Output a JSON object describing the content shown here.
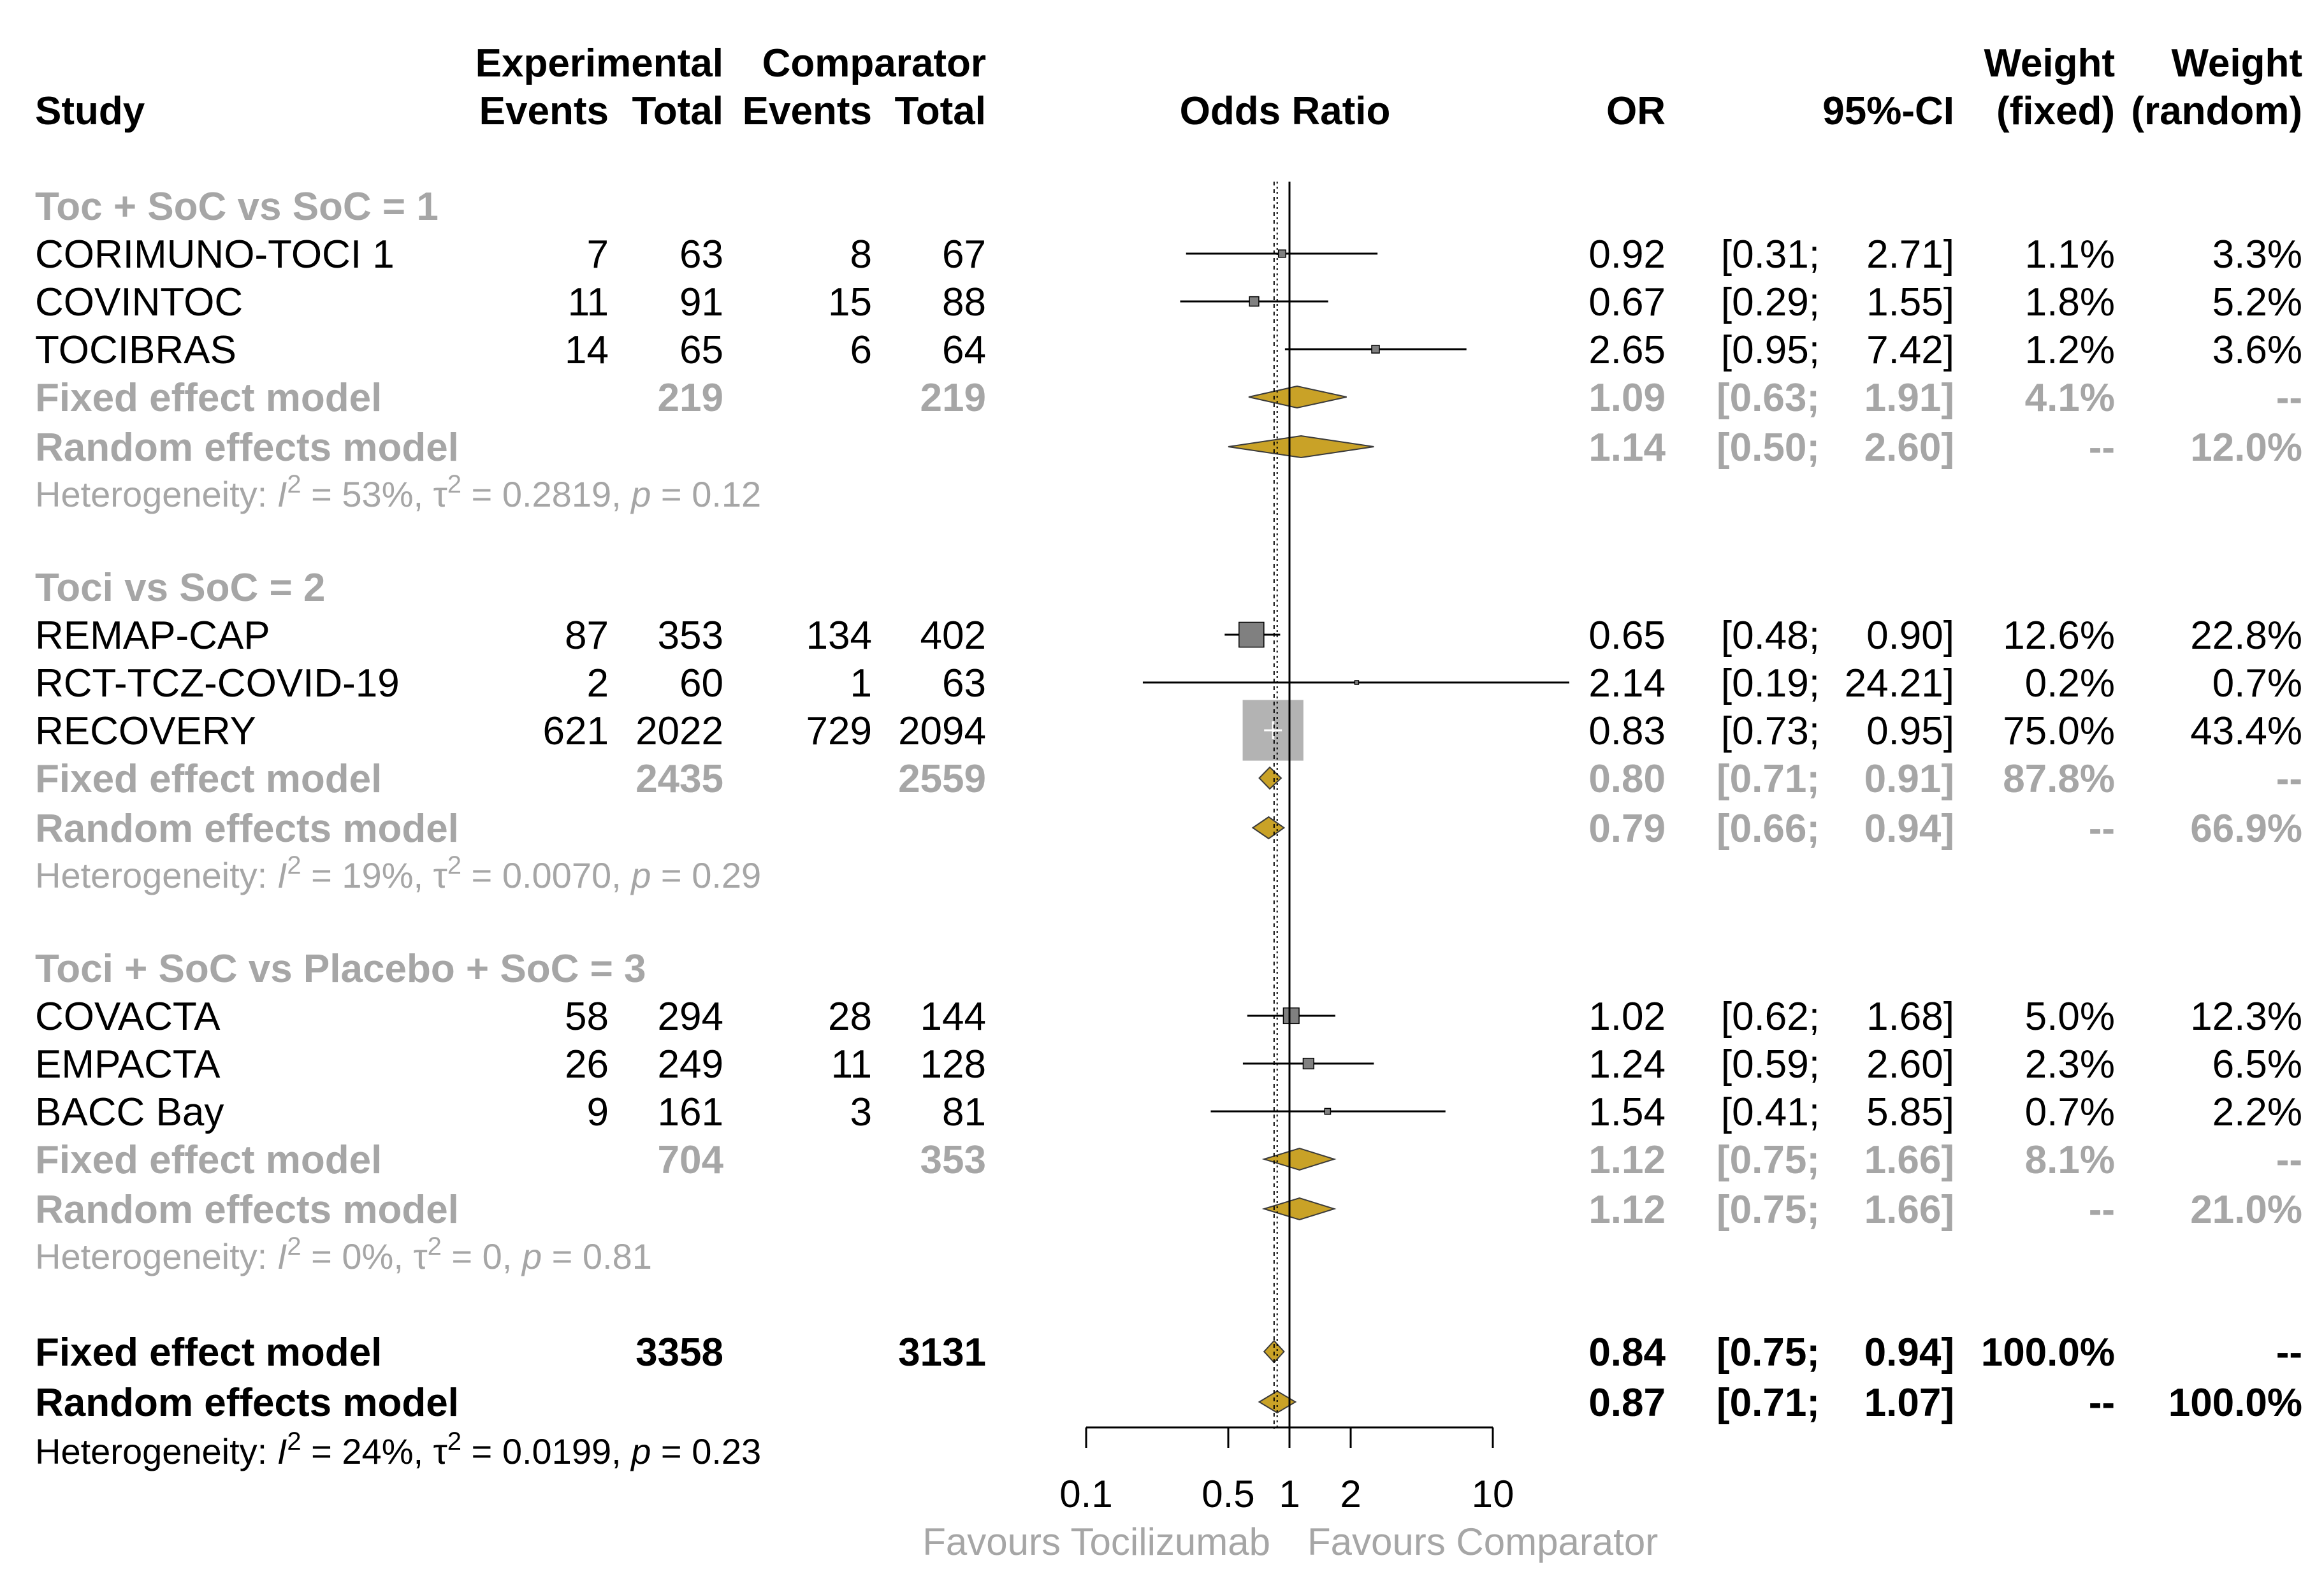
{
  "chart_data": {
    "type": "forest",
    "header": {
      "study": "Study",
      "experimental": "Experimental",
      "comparator": "Comparator",
      "events": "Events",
      "total": "Total",
      "odds_ratio": "Odds Ratio",
      "or": "OR",
      "ci": "95%-CI",
      "weight": "Weight",
      "fixed": "(fixed)",
      "random": "(random)"
    },
    "axis": {
      "scale": "log",
      "ticks": [
        0.1,
        0.5,
        1,
        2,
        10
      ],
      "tick_labels": [
        "0.1",
        "0.5",
        "1",
        "2",
        "10"
      ],
      "left_label": "Favours Tocilizumab",
      "right_label": "Favours Comparator",
      "null_value": 1,
      "overall_fixed_line": 0.84,
      "overall_random_line": 0.87
    },
    "colors": {
      "diamond": "#c9a227",
      "diamond_stroke": "#3b3b3b",
      "subgroup_text": "#a6a6a6",
      "big_box": "#b3b3b3"
    },
    "groups": [
      {
        "label": "Toc + SoC vs SoC = 1",
        "studies": [
          {
            "name": "CORIMUNO-TOCI 1",
            "e_ev": "7",
            "e_tot": "63",
            "c_ev": "8",
            "c_tot": "67",
            "or": "0.92",
            "lo": "[0.31;",
            "hi": "2.71]",
            "wf": "1.1%",
            "wr": "3.3%",
            "v": [
              0.92,
              0.31,
              2.71,
              1.1
            ]
          },
          {
            "name": "COVINTOC",
            "e_ev": "11",
            "e_tot": "91",
            "c_ev": "15",
            "c_tot": "88",
            "or": "0.67",
            "lo": "[0.29;",
            "hi": "1.55]",
            "wf": "1.8%",
            "wr": "5.2%",
            "v": [
              0.67,
              0.29,
              1.55,
              1.8
            ]
          },
          {
            "name": "TOCIBRAS",
            "e_ev": "14",
            "e_tot": "65",
            "c_ev": "6",
            "c_tot": "64",
            "or": "2.65",
            "lo": "[0.95;",
            "hi": "7.42]",
            "wf": "1.2%",
            "wr": "3.6%",
            "v": [
              2.65,
              0.95,
              7.42,
              1.2
            ]
          }
        ],
        "fixed": {
          "name": "Fixed effect model",
          "e_tot": "219",
          "c_tot": "219",
          "or": "1.09",
          "lo": "[0.63;",
          "hi": "1.91]",
          "wf": "4.1%",
          "wr": "--",
          "v": [
            1.09,
            0.63,
            1.91
          ]
        },
        "random": {
          "name": "Random effects model",
          "or": "1.14",
          "lo": "[0.50;",
          "hi": "2.60]",
          "wf": "--",
          "wr": "12.0%",
          "v": [
            1.14,
            0.5,
            2.6
          ]
        },
        "het": {
          "prefix": "Heterogeneity: ",
          "i2": "I",
          "i2_val": " = 53%, ",
          "tau": "τ",
          "tau_val": " = 0.2819, ",
          "p": "p",
          "p_val": " = 0.12"
        }
      },
      {
        "label": "Toci vs SoC = 2",
        "studies": [
          {
            "name": "REMAP-CAP",
            "e_ev": "87",
            "e_tot": "353",
            "c_ev": "134",
            "c_tot": "402",
            "or": "0.65",
            "lo": "[0.48;",
            "hi": "0.90]",
            "wf": "12.6%",
            "wr": "22.8%",
            "v": [
              0.65,
              0.48,
              0.9,
              12.6
            ]
          },
          {
            "name": "RCT-TCZ-COVID-19",
            "e_ev": "2",
            "e_tot": "60",
            "c_ev": "1",
            "c_tot": "63",
            "or": "2.14",
            "lo": "[0.19;",
            "hi": "24.21]",
            "wf": "0.2%",
            "wr": "0.7%",
            "v": [
              2.14,
              0.19,
              24.21,
              0.2
            ]
          },
          {
            "name": "RECOVERY",
            "e_ev": "621",
            "e_tot": "2022",
            "c_ev": "729",
            "c_tot": "2094",
            "or": "0.83",
            "lo": "[0.73;",
            "hi": "0.95]",
            "wf": "75.0%",
            "wr": "43.4%",
            "v": [
              0.83,
              0.73,
              0.95,
              75.0
            ]
          }
        ],
        "fixed": {
          "name": "Fixed effect model",
          "e_tot": "2435",
          "c_tot": "2559",
          "or": "0.80",
          "lo": "[0.71;",
          "hi": "0.91]",
          "wf": "87.8%",
          "wr": "--",
          "v": [
            0.8,
            0.71,
            0.91
          ]
        },
        "random": {
          "name": "Random effects model",
          "or": "0.79",
          "lo": "[0.66;",
          "hi": "0.94]",
          "wf": "--",
          "wr": "66.9%",
          "v": [
            0.79,
            0.66,
            0.94
          ]
        },
        "het": {
          "prefix": "Heterogeneity: ",
          "i2": "I",
          "i2_val": " = 19%, ",
          "tau": "τ",
          "tau_val": " = 0.0070, ",
          "p": "p",
          "p_val": " = 0.29"
        }
      },
      {
        "label": "Toci + SoC vs Placebo + SoC = 3",
        "studies": [
          {
            "name": "COVACTA",
            "e_ev": "58",
            "e_tot": "294",
            "c_ev": "28",
            "c_tot": "144",
            "or": "1.02",
            "lo": "[0.62;",
            "hi": "1.68]",
            "wf": "5.0%",
            "wr": "12.3%",
            "v": [
              1.02,
              0.62,
              1.68,
              5.0
            ]
          },
          {
            "name": "EMPACTA",
            "e_ev": "26",
            "e_tot": "249",
            "c_ev": "11",
            "c_tot": "128",
            "or": "1.24",
            "lo": "[0.59;",
            "hi": "2.60]",
            "wf": "2.3%",
            "wr": "6.5%",
            "v": [
              1.24,
              0.59,
              2.6,
              2.3
            ]
          },
          {
            "name": "BACC Bay",
            "e_ev": "9",
            "e_tot": "161",
            "c_ev": "3",
            "c_tot": "81",
            "or": "1.54",
            "lo": "[0.41;",
            "hi": "5.85]",
            "wf": "0.7%",
            "wr": "2.2%",
            "v": [
              1.54,
              0.41,
              5.85,
              0.7
            ]
          }
        ],
        "fixed": {
          "name": "Fixed effect model",
          "e_tot": "704",
          "c_tot": "353",
          "or": "1.12",
          "lo": "[0.75;",
          "hi": "1.66]",
          "wf": "8.1%",
          "wr": "--",
          "v": [
            1.12,
            0.75,
            1.66
          ]
        },
        "random": {
          "name": "Random effects model",
          "or": "1.12",
          "lo": "[0.75;",
          "hi": "1.66]",
          "wf": "--",
          "wr": "21.0%",
          "v": [
            1.12,
            0.75,
            1.66
          ]
        },
        "het": {
          "prefix": "Heterogeneity: ",
          "i2": "I",
          "i2_val": " = 0%, ",
          "tau": "τ",
          "tau_val": " = 0, ",
          "p": "p",
          "p_val": " = 0.81"
        }
      }
    ],
    "overall": {
      "fixed": {
        "name": "Fixed effect model",
        "e_tot": "3358",
        "c_tot": "3131",
        "or": "0.84",
        "lo": "[0.75;",
        "hi": "0.94]",
        "wf": "100.0%",
        "wr": "--",
        "v": [
          0.84,
          0.75,
          0.94
        ]
      },
      "random": {
        "name": "Random effects model",
        "or": "0.87",
        "lo": "[0.71;",
        "hi": "1.07]",
        "wf": "--",
        "wr": "100.0%",
        "v": [
          0.87,
          0.71,
          1.07
        ]
      },
      "het": {
        "prefix": "Heterogeneity: ",
        "i2": "I",
        "i2_val": " = 24%, ",
        "tau": "τ",
        "tau_val": " = 0.0199, ",
        "p": "p",
        "p_val": " = 0.23"
      }
    },
    "superscript": "2"
  }
}
